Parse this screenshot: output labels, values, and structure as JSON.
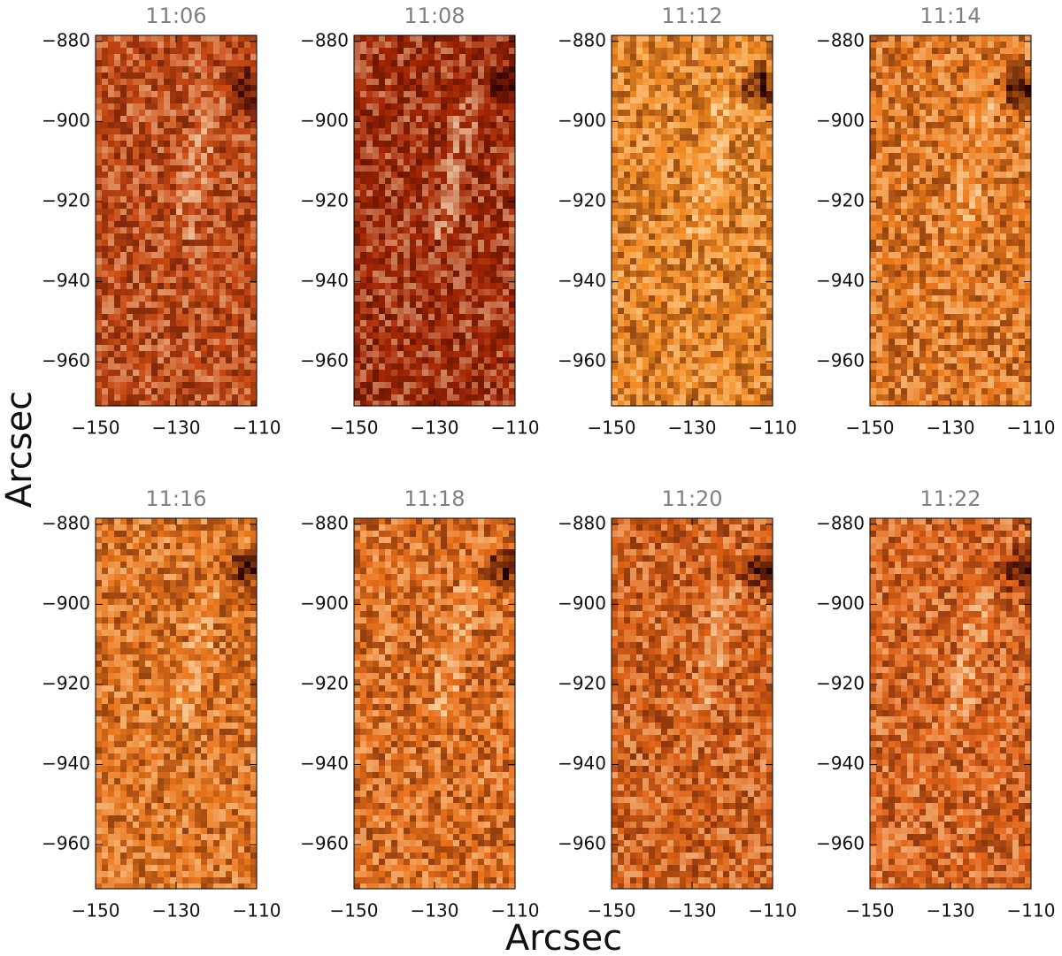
{
  "x_label": "Arcsec",
  "y_label": "Arcsec",
  "chart_data": [
    {
      "type": "image",
      "title": "11:06",
      "color": "#c84812",
      "xlim": [
        -150,
        -110
      ],
      "ylim": [
        -971,
        -878.5
      ],
      "xticks": [
        {
          "value": -150,
          "label": "−150"
        },
        {
          "value": -130,
          "label": "−130"
        },
        {
          "value": -110,
          "label": "−110"
        }
      ],
      "yticks": [
        {
          "value": -880,
          "label": "−880"
        },
        {
          "value": -900,
          "label": "−900"
        },
        {
          "value": -920,
          "label": "−920"
        },
        {
          "value": -940,
          "label": "−940"
        },
        {
          "value": -960,
          "label": "−960"
        }
      ]
    },
    {
      "type": "image",
      "title": "11:08",
      "color": "#a82804",
      "xlim": [
        -150,
        -110
      ],
      "ylim": [
        -971,
        -878.5
      ],
      "xticks": [
        {
          "value": -150,
          "label": "−150"
        },
        {
          "value": -130,
          "label": "−130"
        },
        {
          "value": -110,
          "label": "−110"
        }
      ],
      "yticks": [
        {
          "value": -880,
          "label": "−880"
        },
        {
          "value": -900,
          "label": "−900"
        },
        {
          "value": -920,
          "label": "−920"
        },
        {
          "value": -940,
          "label": "−940"
        },
        {
          "value": -960,
          "label": "−960"
        }
      ]
    },
    {
      "type": "image",
      "title": "11:12",
      "color": "#f38a22",
      "xlim": [
        -150,
        -110
      ],
      "ylim": [
        -971,
        -878.5
      ],
      "xticks": [
        {
          "value": -150,
          "label": "−150"
        },
        {
          "value": -130,
          "label": "−130"
        },
        {
          "value": -110,
          "label": "−110"
        }
      ],
      "yticks": [
        {
          "value": -880,
          "label": "−880"
        },
        {
          "value": -900,
          "label": "−900"
        },
        {
          "value": -920,
          "label": "−920"
        },
        {
          "value": -940,
          "label": "−940"
        },
        {
          "value": -960,
          "label": "−960"
        }
      ]
    },
    {
      "type": "image",
      "title": "11:14",
      "color": "#ec7a1c",
      "xlim": [
        -150,
        -110
      ],
      "ylim": [
        -971,
        -878.5
      ],
      "xticks": [
        {
          "value": -150,
          "label": "−150"
        },
        {
          "value": -130,
          "label": "−130"
        },
        {
          "value": -110,
          "label": "−110"
        }
      ],
      "yticks": [
        {
          "value": -880,
          "label": "−880"
        },
        {
          "value": -900,
          "label": "−900"
        },
        {
          "value": -920,
          "label": "−920"
        },
        {
          "value": -940,
          "label": "−940"
        },
        {
          "value": -960,
          "label": "−960"
        }
      ]
    },
    {
      "type": "image",
      "title": "11:16",
      "color": "#ea761c",
      "xlim": [
        -150,
        -110
      ],
      "ylim": [
        -971,
        -878.5
      ],
      "xticks": [
        {
          "value": -150,
          "label": "−150"
        },
        {
          "value": -130,
          "label": "−130"
        },
        {
          "value": -110,
          "label": "−110"
        }
      ],
      "yticks": [
        {
          "value": -880,
          "label": "−880"
        },
        {
          "value": -900,
          "label": "−900"
        },
        {
          "value": -920,
          "label": "−920"
        },
        {
          "value": -940,
          "label": "−940"
        },
        {
          "value": -960,
          "label": "−960"
        }
      ]
    },
    {
      "type": "image",
      "title": "11:18",
      "color": "#e9701a",
      "xlim": [
        -150,
        -110
      ],
      "ylim": [
        -971,
        -878.5
      ],
      "xticks": [
        {
          "value": -150,
          "label": "−150"
        },
        {
          "value": -130,
          "label": "−130"
        },
        {
          "value": -110,
          "label": "−110"
        }
      ],
      "yticks": [
        {
          "value": -880,
          "label": "−880"
        },
        {
          "value": -900,
          "label": "−900"
        },
        {
          "value": -920,
          "label": "−920"
        },
        {
          "value": -940,
          "label": "−940"
        },
        {
          "value": -960,
          "label": "−960"
        }
      ]
    },
    {
      "type": "image",
      "title": "11:20",
      "color": "#de6216",
      "xlim": [
        -150,
        -110
      ],
      "ylim": [
        -971,
        -878.5
      ],
      "xticks": [
        {
          "value": -150,
          "label": "−150"
        },
        {
          "value": -130,
          "label": "−130"
        },
        {
          "value": -110,
          "label": "−110"
        }
      ],
      "yticks": [
        {
          "value": -880,
          "label": "−880"
        },
        {
          "value": -900,
          "label": "−900"
        },
        {
          "value": -920,
          "label": "−920"
        },
        {
          "value": -940,
          "label": "−940"
        },
        {
          "value": -960,
          "label": "−960"
        }
      ]
    },
    {
      "type": "image",
      "title": "11:22",
      "color": "#e4661a",
      "xlim": [
        -150,
        -110
      ],
      "ylim": [
        -971,
        -878.5
      ],
      "xticks": [
        {
          "value": -150,
          "label": "−150"
        },
        {
          "value": -130,
          "label": "−130"
        },
        {
          "value": -110,
          "label": "−110"
        }
      ],
      "yticks": [
        {
          "value": -880,
          "label": "−880"
        },
        {
          "value": -900,
          "label": "−900"
        },
        {
          "value": -920,
          "label": "−920"
        },
        {
          "value": -940,
          "label": "−940"
        },
        {
          "value": -960,
          "label": "−960"
        }
      ]
    }
  ]
}
